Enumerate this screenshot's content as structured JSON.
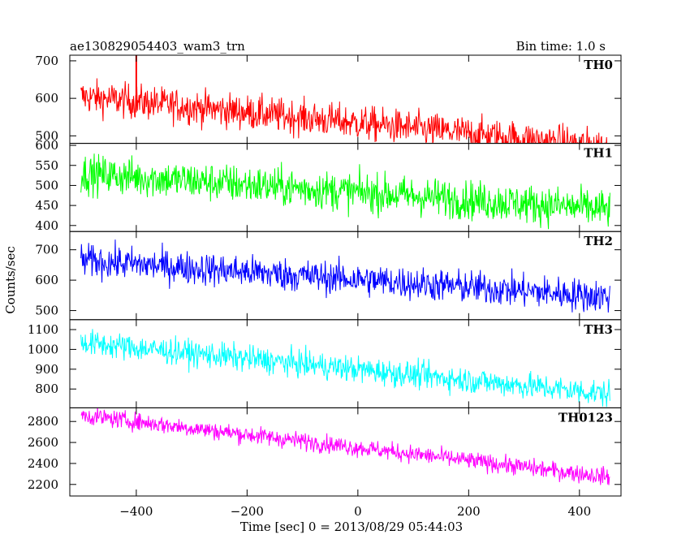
{
  "header": {
    "title": "ae130829054403_wam3_trn",
    "bin_time": "Bin time: 1.0 s"
  },
  "axes": {
    "ylabel": "Counts/sec",
    "xlabel": "Time [sec] 0 = 2013/08/29 05:44:03"
  },
  "chart_data": {
    "type": "line",
    "x_range": [
      -500,
      455
    ],
    "xlim": [
      -520,
      475
    ],
    "x_ticks": [
      -400,
      -200,
      0,
      200,
      400
    ],
    "x_tick_labels": [
      "−400",
      "−200",
      "0",
      "200",
      "400"
    ],
    "bin_time_s": 1.0,
    "grid": false,
    "panels": [
      {
        "name": "TH0",
        "color": "#ff0000",
        "ylim": [
          480,
          715
        ],
        "y_ticks": [
          500,
          600,
          700
        ],
        "start_mean": 605,
        "end_mean": 470,
        "noise": 38,
        "spike": {
          "x": -400,
          "y": 760
        }
      },
      {
        "name": "TH1",
        "color": "#00ff00",
        "ylim": [
          385,
          605
        ],
        "y_ticks": [
          400,
          450,
          500,
          550,
          600
        ],
        "start_mean": 530,
        "end_mean": 440,
        "noise": 40
      },
      {
        "name": "TH2",
        "color": "#0000ff",
        "ylim": [
          470,
          760
        ],
        "y_ticks": [
          500,
          600,
          700
        ],
        "start_mean": 665,
        "end_mean": 545,
        "noise": 45
      },
      {
        "name": "TH3",
        "color": "#00ffff",
        "ylim": [
          705,
          1150
        ],
        "y_ticks": [
          800,
          900,
          1000,
          1100
        ],
        "start_mean": 1035,
        "end_mean": 775,
        "noise": 55
      },
      {
        "name": "TH0123",
        "color": "#ff00ff",
        "ylim": [
          2090,
          2930
        ],
        "y_ticks": [
          2200,
          2400,
          2600,
          2800
        ],
        "start_mean": 2860,
        "end_mean": 2270,
        "noise": 70
      }
    ]
  }
}
